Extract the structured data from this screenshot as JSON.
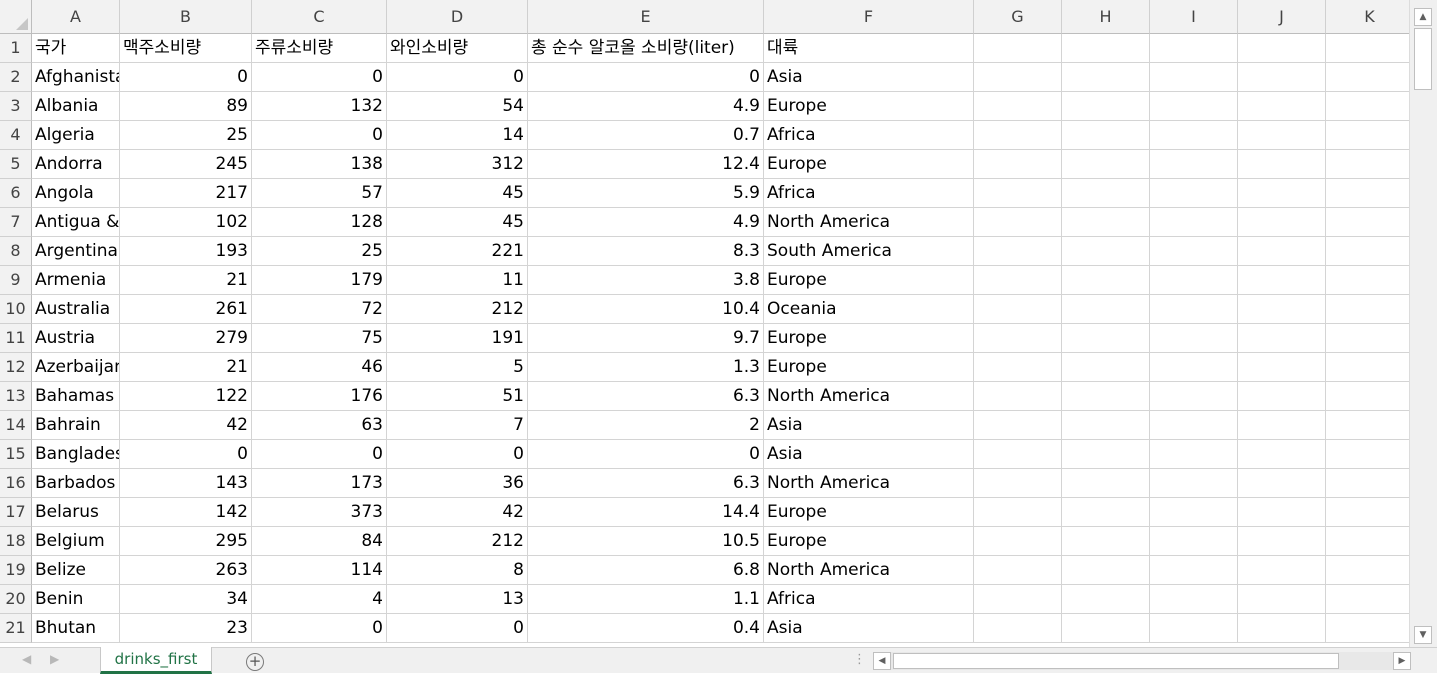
{
  "sheet": {
    "columns": [
      "A",
      "B",
      "C",
      "D",
      "E",
      "F",
      "G",
      "H",
      "I",
      "J",
      "K"
    ],
    "rows": [
      {
        "num": "1",
        "cells": [
          "국가",
          "맥주소비량",
          "주류소비량",
          "와인소비량",
          "총 순수 알코올 소비량(liter)",
          "대륙"
        ]
      },
      {
        "num": "2",
        "cells": [
          "Afghanistan",
          "0",
          "0",
          "0",
          "0",
          "Asia"
        ]
      },
      {
        "num": "3",
        "cells": [
          "Albania",
          "89",
          "132",
          "54",
          "4.9",
          "Europe"
        ]
      },
      {
        "num": "4",
        "cells": [
          "Algeria",
          "25",
          "0",
          "14",
          "0.7",
          "Africa"
        ]
      },
      {
        "num": "5",
        "cells": [
          "Andorra",
          "245",
          "138",
          "312",
          "12.4",
          "Europe"
        ]
      },
      {
        "num": "6",
        "cells": [
          "Angola",
          "217",
          "57",
          "45",
          "5.9",
          "Africa"
        ]
      },
      {
        "num": "7",
        "cells": [
          "Antigua & Barbuda",
          "102",
          "128",
          "45",
          "4.9",
          "North America"
        ]
      },
      {
        "num": "8",
        "cells": [
          "Argentina",
          "193",
          "25",
          "221",
          "8.3",
          "South America"
        ]
      },
      {
        "num": "9",
        "cells": [
          "Armenia",
          "21",
          "179",
          "11",
          "3.8",
          "Europe"
        ]
      },
      {
        "num": "10",
        "cells": [
          "Australia",
          "261",
          "72",
          "212",
          "10.4",
          "Oceania"
        ]
      },
      {
        "num": "11",
        "cells": [
          "Austria",
          "279",
          "75",
          "191",
          "9.7",
          "Europe"
        ]
      },
      {
        "num": "12",
        "cells": [
          "Azerbaijan",
          "21",
          "46",
          "5",
          "1.3",
          "Europe"
        ]
      },
      {
        "num": "13",
        "cells": [
          "Bahamas",
          "122",
          "176",
          "51",
          "6.3",
          "North America"
        ]
      },
      {
        "num": "14",
        "cells": [
          "Bahrain",
          "42",
          "63",
          "7",
          "2",
          "Asia"
        ]
      },
      {
        "num": "15",
        "cells": [
          "Bangladesh",
          "0",
          "0",
          "0",
          "0",
          "Asia"
        ]
      },
      {
        "num": "16",
        "cells": [
          "Barbados",
          "143",
          "173",
          "36",
          "6.3",
          "North America"
        ]
      },
      {
        "num": "17",
        "cells": [
          "Belarus",
          "142",
          "373",
          "42",
          "14.4",
          "Europe"
        ]
      },
      {
        "num": "18",
        "cells": [
          "Belgium",
          "295",
          "84",
          "212",
          "10.5",
          "Europe"
        ]
      },
      {
        "num": "19",
        "cells": [
          "Belize",
          "263",
          "114",
          "8",
          "6.8",
          "North America"
        ]
      },
      {
        "num": "20",
        "cells": [
          "Benin",
          "34",
          "4",
          "13",
          "1.1",
          "Africa"
        ]
      },
      {
        "num": "21",
        "cells": [
          "Bhutan",
          "23",
          "0",
          "0",
          "0.4",
          "Asia"
        ]
      }
    ]
  },
  "tabs": {
    "active": "drinks_first",
    "prev_arrow": "◀",
    "next_arrow": "▶",
    "add_symbol": "+",
    "split_handle": "⋮"
  },
  "scroll": {
    "up": "▲",
    "down": "▼",
    "left": "◀",
    "right": "▶"
  },
  "colors": {
    "accent": "#217346",
    "header_bg": "#f2f2f2",
    "grid": "#d4d4d4"
  }
}
